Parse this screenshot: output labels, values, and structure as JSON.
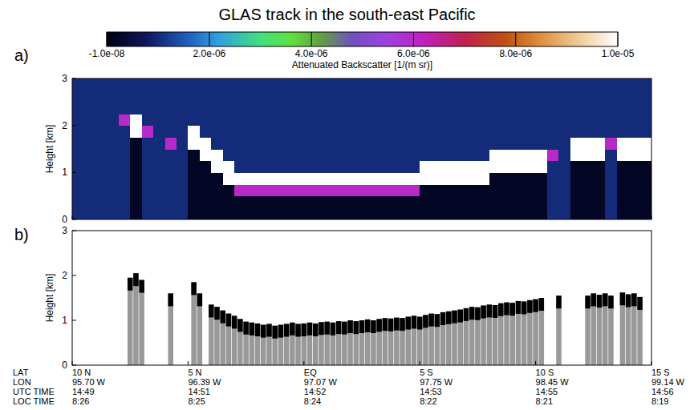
{
  "chart_data": [
    {
      "type": "heatmap",
      "title": "GLAS track in the south-east Pacific",
      "panel": "a)",
      "y_label": "Height [km]",
      "xlim": [
        10,
        -15
      ],
      "ylim": [
        0,
        3
      ],
      "xticks": [
        10,
        5,
        0,
        -5,
        -10,
        -15
      ],
      "yticks": [
        0,
        1,
        2,
        3
      ],
      "tick_labels": "y",
      "color_label": "Attenuated Backscatter [1/(m sr)]",
      "color_range": [
        -1e-08,
        1e-05
      ],
      "color_ticks": [
        {
          "value": -1e-08,
          "label": "-1.0e-08"
        },
        {
          "value": 2e-06,
          "label": "2.0e-06"
        },
        {
          "value": 4e-06,
          "label": "4.0e-06"
        },
        {
          "value": 6e-06,
          "label": "6.0e-06"
        },
        {
          "value": 8e-06,
          "label": "8.0e-06"
        },
        {
          "value": 1e-05,
          "label": "1.0e-05"
        }
      ],
      "cells": [
        [
          1e-06,
          1e-06,
          1e-06,
          1e-06,
          1e-06,
          2e-07,
          1e-06,
          1e-06,
          1e-06,
          1e-06,
          2e-07,
          2e-07,
          2e-07,
          2e-07,
          2e-07,
          2e-07,
          2e-07,
          2e-07,
          2e-07,
          2e-07,
          2e-07,
          2e-07,
          2e-07,
          2e-07,
          2e-07,
          2e-07,
          2e-07,
          2e-07,
          2e-07,
          2e-07,
          2e-07,
          2e-07,
          2e-07,
          2e-07,
          2e-07,
          2e-07,
          2e-07,
          2e-07,
          2e-07,
          2e-07,
          2e-07,
          1e-06,
          1e-06,
          2e-07,
          2e-07,
          2e-07,
          1e-06,
          2e-07,
          2e-07,
          2e-07
        ],
        [
          1e-06,
          1e-06,
          1e-06,
          1e-06,
          1e-06,
          2e-07,
          1e-06,
          1e-06,
          1e-06,
          1e-06,
          2e-07,
          2e-07,
          2e-07,
          2e-07,
          2e-07,
          2e-07,
          2e-07,
          2e-07,
          2e-07,
          2e-07,
          2e-07,
          2e-07,
          2e-07,
          2e-07,
          2e-07,
          2e-07,
          2e-07,
          2e-07,
          2e-07,
          2e-07,
          2e-07,
          2e-07,
          2e-07,
          2e-07,
          2e-07,
          2e-07,
          2e-07,
          2e-07,
          2e-07,
          2e-07,
          2e-07,
          1e-06,
          1e-06,
          2e-07,
          2e-07,
          2e-07,
          1e-06,
          2e-07,
          2e-07,
          2e-07
        ],
        [
          1e-06,
          1e-06,
          1e-06,
          1e-06,
          1e-06,
          2e-07,
          1e-06,
          1e-06,
          1e-06,
          1e-06,
          2e-07,
          2e-07,
          2e-07,
          2e-07,
          6e-06,
          6e-06,
          6e-06,
          6e-06,
          6e-06,
          6e-06,
          6e-06,
          6e-06,
          6e-06,
          6e-06,
          6e-06,
          6e-06,
          6e-06,
          6e-06,
          6e-06,
          6e-06,
          2e-07,
          2e-07,
          2e-07,
          2e-07,
          2e-07,
          2e-07,
          2e-07,
          2e-07,
          2e-07,
          2e-07,
          2e-07,
          1e-06,
          1e-06,
          2e-07,
          2e-07,
          2e-07,
          1e-06,
          2e-07,
          2e-07,
          2e-07
        ],
        [
          1e-06,
          1e-06,
          1e-06,
          1e-06,
          1e-06,
          2e-07,
          1e-06,
          1e-06,
          1e-06,
          1e-06,
          2e-07,
          2e-07,
          2e-07,
          1e-05,
          1e-05,
          1e-05,
          1e-05,
          1e-05,
          1e-05,
          1e-05,
          1e-05,
          1e-05,
          1e-05,
          1e-05,
          1e-05,
          1e-05,
          1e-05,
          1e-05,
          1e-05,
          1e-05,
          1e-05,
          1e-05,
          1e-05,
          1e-05,
          1e-05,
          1e-05,
          2e-07,
          2e-07,
          2e-07,
          2e-07,
          2e-07,
          1e-06,
          1e-06,
          2e-07,
          2e-07,
          2e-07,
          1e-06,
          2e-07,
          2e-07,
          2e-07
        ],
        [
          1e-06,
          1e-06,
          1e-06,
          1e-06,
          1e-06,
          2e-07,
          1e-06,
          1e-06,
          1e-06,
          1e-06,
          2e-07,
          2e-07,
          1e-05,
          1e-05,
          1e-06,
          1e-06,
          1e-06,
          1e-06,
          1e-06,
          1e-06,
          1e-06,
          1e-06,
          1e-06,
          1e-06,
          1e-06,
          1e-06,
          1e-06,
          1e-06,
          1e-06,
          1e-06,
          1e-05,
          1e-05,
          1e-05,
          1e-05,
          1e-05,
          1e-05,
          1e-05,
          1e-05,
          1e-05,
          1e-05,
          1e-05,
          1e-06,
          1e-06,
          2e-07,
          2e-07,
          2e-07,
          1e-06,
          2e-07,
          2e-07,
          2e-07
        ],
        [
          1e-06,
          1e-06,
          1e-06,
          1e-06,
          1e-06,
          2e-07,
          1e-06,
          1e-06,
          1e-06,
          1e-06,
          2e-07,
          1e-05,
          1e-05,
          1e-06,
          1e-06,
          1e-06,
          1e-06,
          1e-06,
          1e-06,
          1e-06,
          1e-06,
          1e-06,
          1e-06,
          1e-06,
          1e-06,
          1e-06,
          1e-06,
          1e-06,
          1e-06,
          1e-06,
          1e-06,
          1e-06,
          1e-06,
          1e-06,
          1e-06,
          1e-06,
          1e-05,
          1e-05,
          1e-05,
          1e-05,
          1e-05,
          6e-06,
          1e-06,
          1e-05,
          1e-05,
          1e-05,
          1e-06,
          1e-05,
          1e-05,
          1e-05
        ],
        [
          1e-06,
          1e-06,
          1e-06,
          1e-06,
          1e-06,
          2e-07,
          1e-06,
          1e-06,
          6e-06,
          1e-06,
          1e-05,
          1e-05,
          1e-06,
          1e-06,
          1e-06,
          1e-06,
          1e-06,
          1e-06,
          1e-06,
          1e-06,
          1e-06,
          1e-06,
          1e-06,
          1e-06,
          1e-06,
          1e-06,
          1e-06,
          1e-06,
          1e-06,
          1e-06,
          1e-06,
          1e-06,
          1e-06,
          1e-06,
          1e-06,
          1e-06,
          1e-06,
          1e-06,
          1e-06,
          1e-06,
          1e-06,
          1e-06,
          1e-06,
          1e-05,
          1e-05,
          1e-05,
          6e-06,
          1e-05,
          1e-05,
          1e-05
        ],
        [
          1e-06,
          1e-06,
          1e-06,
          1e-06,
          1e-06,
          1e-05,
          6e-06,
          1e-06,
          1e-06,
          1e-06,
          1e-05,
          1e-06,
          1e-06,
          1e-06,
          1e-06,
          1e-06,
          1e-06,
          1e-06,
          1e-06,
          1e-06,
          1e-06,
          1e-06,
          1e-06,
          1e-06,
          1e-06,
          1e-06,
          1e-06,
          1e-06,
          1e-06,
          1e-06,
          1e-06,
          1e-06,
          1e-06,
          1e-06,
          1e-06,
          1e-06,
          1e-06,
          1e-06,
          1e-06,
          1e-06,
          1e-06,
          1e-06,
          1e-06,
          1e-06,
          1e-06,
          1e-06,
          1e-06,
          1e-06,
          1e-06,
          1e-06
        ],
        [
          1e-06,
          1e-06,
          1e-06,
          1e-06,
          6e-06,
          1e-05,
          1e-06,
          1e-06,
          1e-06,
          1e-06,
          1e-06,
          1e-06,
          1e-06,
          1e-06,
          1e-06,
          1e-06,
          1e-06,
          1e-06,
          1e-06,
          1e-06,
          1e-06,
          1e-06,
          1e-06,
          1e-06,
          1e-06,
          1e-06,
          1e-06,
          1e-06,
          1e-06,
          1e-06,
          1e-06,
          1e-06,
          1e-06,
          1e-06,
          1e-06,
          1e-06,
          1e-06,
          1e-06,
          1e-06,
          1e-06,
          1e-06,
          1e-06,
          1e-06,
          1e-06,
          1e-06,
          1e-06,
          1e-06,
          1e-06,
          1e-06,
          1e-06
        ],
        [
          1e-06,
          1e-06,
          1e-06,
          1e-06,
          1e-06,
          1e-06,
          1e-06,
          1e-06,
          1e-06,
          1e-06,
          1e-06,
          1e-06,
          1e-06,
          1e-06,
          1e-06,
          1e-06,
          1e-06,
          1e-06,
          1e-06,
          1e-06,
          1e-06,
          1e-06,
          1e-06,
          1e-06,
          1e-06,
          1e-06,
          1e-06,
          1e-06,
          1e-06,
          1e-06,
          1e-06,
          1e-06,
          1e-06,
          1e-06,
          1e-06,
          1e-06,
          1e-06,
          1e-06,
          1e-06,
          1e-06,
          1e-06,
          1e-06,
          1e-06,
          1e-06,
          1e-06,
          1e-06,
          1e-06,
          1e-06,
          1e-06,
          1e-06
        ],
        [
          1e-06,
          1e-06,
          1e-06,
          1e-06,
          1e-06,
          1e-06,
          1e-06,
          1e-06,
          1e-06,
          1e-06,
          1e-06,
          1e-06,
          1e-06,
          1e-06,
          1e-06,
          1e-06,
          1e-06,
          1e-06,
          1e-06,
          1e-06,
          1e-06,
          1e-06,
          1e-06,
          1e-06,
          1e-06,
          1e-06,
          1e-06,
          1e-06,
          1e-06,
          1e-06,
          1e-06,
          1e-06,
          1e-06,
          1e-06,
          1e-06,
          1e-06,
          1e-06,
          1e-06,
          1e-06,
          1e-06,
          1e-06,
          1e-06,
          1e-06,
          1e-06,
          1e-06,
          1e-06,
          1e-06,
          1e-06,
          1e-06,
          1e-06
        ],
        [
          1e-06,
          1e-06,
          1e-06,
          1e-06,
          1e-06,
          1e-06,
          1e-06,
          1e-06,
          1e-06,
          1e-06,
          1e-06,
          1e-06,
          1e-06,
          1e-06,
          1e-06,
          1e-06,
          1e-06,
          1e-06,
          1e-06,
          1e-06,
          1e-06,
          1e-06,
          1e-06,
          1e-06,
          1e-06,
          1e-06,
          1e-06,
          1e-06,
          1e-06,
          1e-06,
          1e-06,
          1e-06,
          1e-06,
          1e-06,
          1e-06,
          1e-06,
          1e-06,
          1e-06,
          1e-06,
          1e-06,
          1e-06,
          1e-06,
          1e-06,
          1e-06,
          1e-06,
          1e-06,
          1e-06,
          1e-06,
          1e-06,
          1e-06
        ]
      ]
    },
    {
      "type": "bar",
      "panel": "b)",
      "y_label": "Height [km]",
      "color": "#999999",
      "xlim": [
        10,
        -15
      ],
      "ylim": [
        0,
        3
      ],
      "xticks": [
        {
          "value": 10,
          "label": "10 N"
        },
        {
          "value": 5,
          "label": "5 N"
        },
        {
          "value": 0,
          "label": "EQ"
        },
        {
          "value": -5,
          "label": "5 S"
        },
        {
          "value": -10,
          "label": "10 S"
        },
        {
          "value": -15,
          "label": "15 S"
        }
      ],
      "yticks": [
        0,
        1,
        2,
        3
      ],
      "tick_rows": [
        "LAT",
        "LON",
        "UTC TIME",
        "LOC TIME"
      ],
      "lon_labels": [
        "95.70 W",
        "96.39 W",
        "97.07 W",
        "97.75 W",
        "98.45 W",
        "99.14 W"
      ],
      "utc_labels": [
        "14:49",
        "14:51",
        "14:52",
        "14:53",
        "14:55",
        "14:56"
      ],
      "loc_labels": [
        "8:26",
        "8:25",
        "8:24",
        "8:22",
        "8:21",
        "8:19"
      ],
      "x": [
        10,
        9.75,
        9.5,
        9.25,
        9,
        8.75,
        8.5,
        8.25,
        8,
        7.75,
        7.5,
        7.25,
        7,
        6.75,
        6.5,
        6.25,
        6,
        5.75,
        5.5,
        5.25,
        5,
        4.75,
        4.5,
        4.25,
        4,
        3.75,
        3.5,
        3.25,
        3,
        2.75,
        2.5,
        2.25,
        2,
        1.75,
        1.5,
        1.25,
        1,
        0.75,
        0.5,
        0.25,
        0,
        -0.25,
        -0.5,
        -0.75,
        -1,
        -1.25,
        -1.5,
        -1.75,
        -2,
        -2.25,
        -2.5,
        -2.75,
        -3,
        -3.25,
        -3.5,
        -3.75,
        -4,
        -4.25,
        -4.5,
        -4.75,
        -5,
        -5.25,
        -5.5,
        -5.75,
        -6,
        -6.25,
        -6.5,
        -6.75,
        -7,
        -7.25,
        -7.5,
        -7.75,
        -8,
        -8.25,
        -8.5,
        -8.75,
        -9,
        -9.25,
        -9.5,
        -9.75,
        -10,
        -10.25,
        -10.5,
        -10.75,
        -11,
        -11.25,
        -11.5,
        -11.75,
        -12,
        -12.25,
        -12.5,
        -12.75,
        -13,
        -13.25,
        -13.5,
        -13.75,
        -14,
        -14.25,
        -14.5,
        -14.75,
        -15
      ],
      "values": [
        null,
        null,
        null,
        null,
        null,
        null,
        null,
        null,
        null,
        null,
        1.95,
        2.05,
        1.9,
        null,
        null,
        null,
        null,
        1.6,
        null,
        null,
        null,
        1.85,
        1.6,
        null,
        1.35,
        1.3,
        1.22,
        1.15,
        1.1,
        1.03,
        0.97,
        0.95,
        0.93,
        0.9,
        0.92,
        0.88,
        0.9,
        0.92,
        0.95,
        0.92,
        0.93,
        0.95,
        0.93,
        0.96,
        0.97,
        0.95,
        0.98,
        0.97,
        1.0,
        0.98,
        1.0,
        1.02,
        1.0,
        1.03,
        1.05,
        1.04,
        1.06,
        1.05,
        1.08,
        1.1,
        1.08,
        1.12,
        1.15,
        1.14,
        1.18,
        1.2,
        1.22,
        1.24,
        1.27,
        1.3,
        1.29,
        1.33,
        1.35,
        1.34,
        1.38,
        1.4,
        1.39,
        1.43,
        1.42,
        1.45,
        1.47,
        1.5,
        null,
        null,
        1.55,
        null,
        null,
        null,
        null,
        1.55,
        1.6,
        1.57,
        1.6,
        1.55,
        null,
        1.62,
        1.58,
        1.6,
        1.52,
        null,
        null
      ]
    }
  ]
}
